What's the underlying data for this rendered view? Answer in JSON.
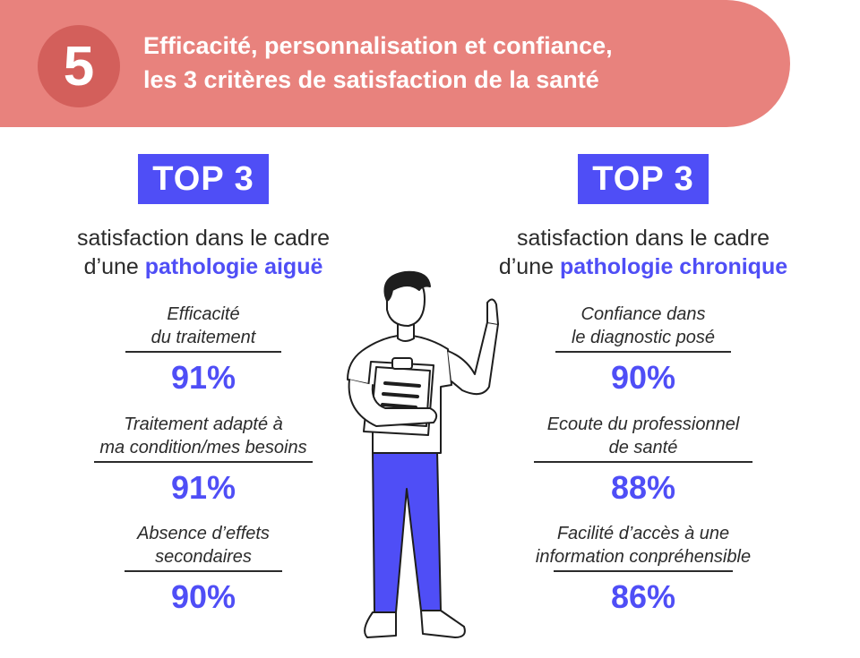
{
  "header": {
    "number": "5",
    "title_line1": "Efficacité, personnalisation et confiance,",
    "title_line2": "les 3 critères de satisfaction de la santé"
  },
  "left": {
    "badge": "TOP 3",
    "subtitle_line1": "satisfaction dans le cadre",
    "subtitle_prefix": "d’une ",
    "subtitle_highlight": "pathologie aiguë",
    "items": [
      {
        "line1": "Efficacité",
        "line2": "du traitement",
        "percent": "91%"
      },
      {
        "line1": "Traitement adapté à",
        "line2": "ma condition/mes besoins",
        "percent": "91%"
      },
      {
        "line1": "Absence d’effets",
        "line2": "secondaires",
        "percent": "90%"
      }
    ]
  },
  "right": {
    "badge": "TOP 3",
    "subtitle_line1": "satisfaction dans le cadre",
    "subtitle_prefix": "d’une ",
    "subtitle_highlight": "pathologie chronique",
    "items": [
      {
        "line1": "Confiance dans",
        "line2": "le diagnostic posé",
        "percent": "90%"
      },
      {
        "line1": "Ecoute du professionnel",
        "line2": "de santé",
        "percent": "88%"
      },
      {
        "line1": "Facilité d’accès à une",
        "line2": "information conpréhensible",
        "percent": "86%"
      }
    ]
  },
  "colors": {
    "banner": "#e8827d",
    "circle": "#d35f5b",
    "accent": "#4f4ef6",
    "text": "#2b2b2b"
  },
  "illustration": "person-holding-clipboard-pointing-up"
}
